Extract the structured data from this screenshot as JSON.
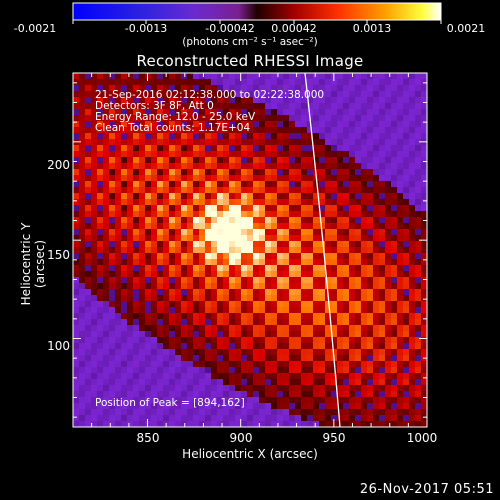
{
  "colorbar": {
    "tick_labels": [
      "-0.0021",
      "-0.0013",
      "-0.00042",
      "0.00042",
      "0.0013",
      "0.0021"
    ],
    "units": "(photons cm⁻² s⁻¹ asec⁻²)"
  },
  "title": "Reconstructed RHESSI Image",
  "info": {
    "time_range": "21-Sep-2016 02:12:38.000 to 02:22:38.000",
    "detectors": "Detectors: 3F 8F, Att 0",
    "energy_range": "Energy Range: 12.0 - 25.0 keV",
    "method": "Clean    Total counts: 1.17E+04",
    "peak": "Position of Peak = [894,162]"
  },
  "axes": {
    "xlabel": "Heliocentric X (arcsec)",
    "ylabel": "Heliocentric Y (arcsec)",
    "x_ticks": [
      "850",
      "900",
      "950",
      "1000"
    ],
    "y_ticks": [
      "100",
      "150",
      "200"
    ],
    "xlim": [
      810,
      1000
    ],
    "ylim": [
      55,
      235
    ]
  },
  "footer": {
    "date": "26-Nov-2017 05:51"
  },
  "colors": {
    "axes": "#ffffff",
    "background": "#000000",
    "limb": "#ffffff"
  }
}
